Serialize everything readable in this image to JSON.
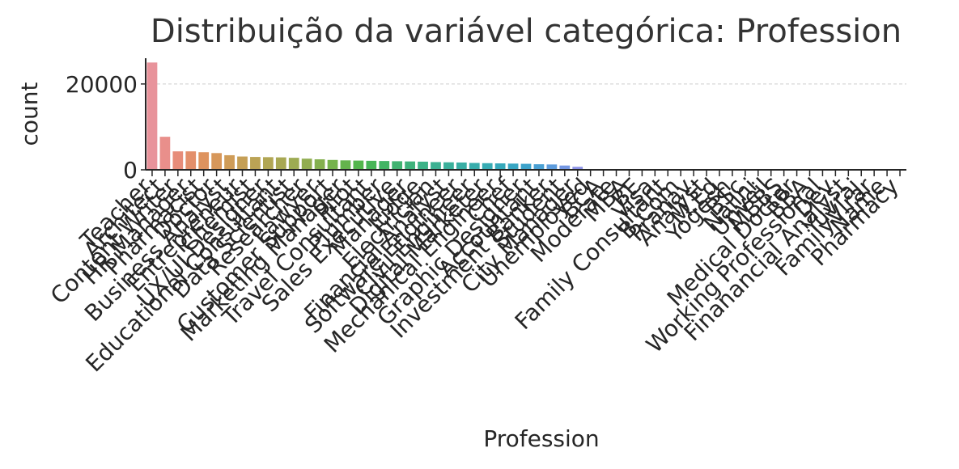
{
  "chart_data": {
    "type": "bar",
    "title": "Distribuição da variável categórica: Profession",
    "xlabel": "Profession",
    "ylabel": "count",
    "ylim": [
      0,
      26000
    ],
    "yticks": [
      0,
      20000
    ],
    "grid": "horizontal dashed",
    "categories": [
      "Teacher",
      "Architect",
      "Content Writer",
      "HR Manager",
      "Pharmacist",
      "Doctor",
      "Business Analyst",
      "Entrepreneur",
      "Chemist",
      "UX/UI Designer",
      "Educational Consultant",
      "Data Scientist",
      "Researcher",
      "Lawyer",
      "Customer Support",
      "Marketing Manager",
      "Pilot",
      "Travel Consultant",
      "Plumber",
      "Sales Executive",
      "Manager",
      "Judge",
      "Electrician",
      "Financial Analyst",
      "Software Engineer",
      "Civil Engineer",
      "Digital Marketer",
      "Mechanical Engineer",
      "Chef",
      "Graphic Designer",
      "Accountant",
      "Investment Banker",
      "Student",
      "City Manager",
      "Unemployed",
      "BCA",
      "Moderate",
      "MBA",
      "BE",
      "Visa",
      "Family Consultant",
      "B.Com",
      "Pranav",
      "Analyst",
      "M.Ed",
      "Yogesh",
      "BSc",
      "Nalini",
      "Unveil",
      "MBBS",
      "Medical Doctor",
      "BBA",
      "Working Professional",
      "Dev",
      "Finanancial Analyst",
      "Yuvraj",
      "FamilyVirar",
      "Name",
      "Pharmacy"
    ],
    "values": [
      25000,
      7700,
      4300,
      4300,
      4100,
      3900,
      3400,
      3100,
      3000,
      2950,
      2900,
      2800,
      2600,
      2450,
      2300,
      2200,
      2150,
      2100,
      2050,
      2000,
      1950,
      1900,
      1800,
      1750,
      1700,
      1600,
      1550,
      1500,
      1450,
      1400,
      1300,
      1250,
      1000,
      700,
      6,
      3,
      3,
      3,
      3,
      2,
      2,
      2,
      2,
      2,
      2,
      2,
      2,
      2,
      2,
      2,
      1,
      1,
      1,
      1,
      1,
      1,
      1,
      1,
      1
    ],
    "colors": [
      "#e8939b",
      "#e98f8b",
      "#e78c79",
      "#e38f6a",
      "#de935e",
      "#d7975a",
      "#cf9c58",
      "#c59f56",
      "#bba355",
      "#b1a654",
      "#a8a853",
      "#9dab52",
      "#91ad50",
      "#84b04f",
      "#75b24d",
      "#64b44c",
      "#53b64c",
      "#47b557",
      "#43b464",
      "#41b371",
      "#3fb27c",
      "#3db287",
      "#3cb192",
      "#3bb09b",
      "#39aea4",
      "#38adac",
      "#37abb3",
      "#36a9bb",
      "#38a6c3",
      "#3da3cb",
      "#4aa0d3",
      "#5e9cdc",
      "#7497e3",
      "#8a91e6",
      "#9a8ce8",
      "#a987e8",
      "#b682e7",
      "#c17de5",
      "#cb79e1",
      "#d576db",
      "#dd74d3",
      "#e373c9",
      "#e672be",
      "#e873b2",
      "#e976a6",
      "#ea7a9b",
      "#ea7f90",
      "#e98f8b",
      "#e38f6a",
      "#cf9c58",
      "#a8a853",
      "#64b44c",
      "#41b371",
      "#3bb09b",
      "#37abb3",
      "#4aa0d3",
      "#8a91e6",
      "#c17de5",
      "#e373c9"
    ]
  }
}
